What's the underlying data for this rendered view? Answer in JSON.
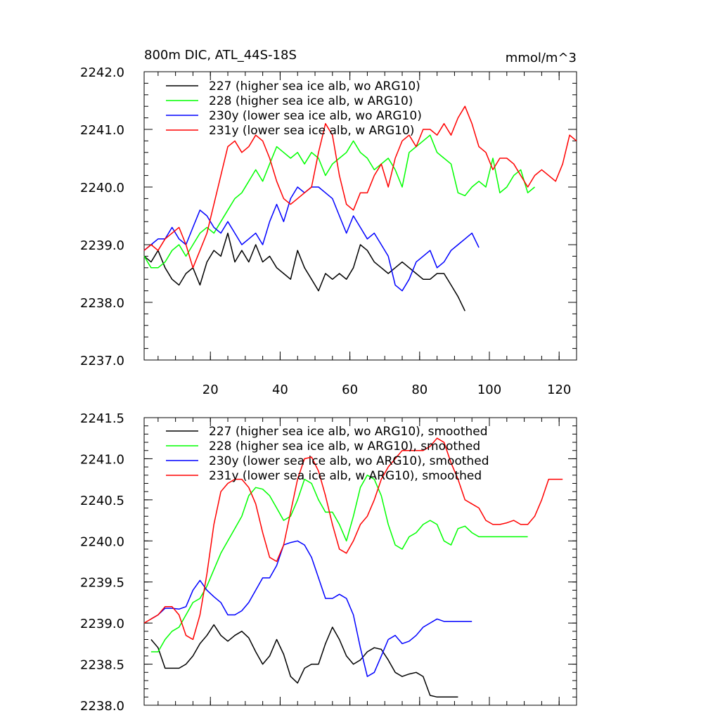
{
  "chart_data": [
    {
      "type": "line",
      "title": "800m DIC, ATL_44S-18S",
      "units": "mmol/m^3",
      "xlim": [
        1,
        125
      ],
      "ylim": [
        2237.0,
        2242.0
      ],
      "xticks": [
        20,
        40,
        60,
        80,
        100,
        120
      ],
      "xtick_labels": [
        "20",
        "40",
        "60",
        "80",
        "100",
        "120"
      ],
      "yticks": [
        2237.0,
        2238.0,
        2239.0,
        2240.0,
        2241.0,
        2242.0
      ],
      "ytick_labels": [
        "2237.0",
        "2238.0",
        "2239.0",
        "2240.0",
        "2241.0",
        "2242.0"
      ],
      "grid": false,
      "legend": "top-left",
      "series": [
        {
          "name": "227 (higher sea ice alb, wo ARG10)",
          "color": "#000000",
          "x": [
            1,
            3,
            5,
            7,
            9,
            11,
            13,
            15,
            17,
            19,
            21,
            23,
            25,
            27,
            29,
            31,
            33,
            35,
            37,
            39,
            41,
            43,
            45,
            47,
            49,
            51,
            53,
            55,
            57,
            59,
            61,
            63,
            65,
            67,
            69,
            71,
            73,
            75,
            77,
            79,
            81,
            83,
            85,
            87,
            89,
            91,
            93
          ],
          "y": [
            2238.8,
            2238.7,
            2238.9,
            2238.6,
            2238.4,
            2238.3,
            2238.5,
            2238.6,
            2238.3,
            2238.7,
            2238.9,
            2238.8,
            2239.2,
            2238.7,
            2238.9,
            2238.7,
            2239.0,
            2238.7,
            2238.8,
            2238.6,
            2238.5,
            2238.4,
            2238.9,
            2238.6,
            2238.4,
            2238.2,
            2238.5,
            2238.4,
            2238.5,
            2238.4,
            2238.6,
            2239.0,
            2238.9,
            2238.7,
            2238.6,
            2238.5,
            2238.6,
            2238.7,
            2238.6,
            2238.5,
            2238.4,
            2238.4,
            2238.5,
            2238.5,
            2238.3,
            2238.1,
            2237.85
          ]
        },
        {
          "name": "228 (higher sea ice alb, w ARG10)",
          "color": "#00ff00",
          "x": [
            1,
            3,
            5,
            7,
            9,
            11,
            13,
            15,
            17,
            19,
            21,
            23,
            25,
            27,
            29,
            31,
            33,
            35,
            37,
            39,
            41,
            43,
            45,
            47,
            49,
            51,
            53,
            55,
            57,
            59,
            61,
            63,
            65,
            67,
            69,
            71,
            73,
            75,
            77,
            79,
            81,
            83,
            85,
            87,
            89,
            91,
            93,
            95,
            97,
            99,
            101,
            103,
            105,
            107,
            109,
            111,
            113
          ],
          "y": [
            2238.8,
            2238.6,
            2238.6,
            2238.7,
            2238.9,
            2239.0,
            2238.8,
            2239.0,
            2239.2,
            2239.3,
            2239.2,
            2239.4,
            2239.6,
            2239.8,
            2239.9,
            2240.1,
            2240.3,
            2240.1,
            2240.4,
            2240.7,
            2240.6,
            2240.5,
            2240.6,
            2240.4,
            2240.6,
            2240.5,
            2240.2,
            2240.4,
            2240.5,
            2240.6,
            2240.8,
            2240.6,
            2240.5,
            2240.3,
            2240.4,
            2240.5,
            2240.3,
            2240.0,
            2240.6,
            2240.7,
            2240.8,
            2240.9,
            2240.6,
            2240.5,
            2240.4,
            2239.9,
            2239.85,
            2240.0,
            2240.1,
            2240.0,
            2240.5,
            2239.9,
            2240.0,
            2240.2,
            2240.3,
            2239.9,
            2240.0
          ]
        },
        {
          "name": "230y (lower sea ice alb, wo ARG10)",
          "color": "#0000ff",
          "x": [
            1,
            3,
            5,
            7,
            9,
            11,
            13,
            15,
            17,
            19,
            21,
            23,
            25,
            27,
            29,
            31,
            33,
            35,
            37,
            39,
            41,
            43,
            45,
            47,
            49,
            51,
            53,
            55,
            57,
            59,
            61,
            63,
            65,
            67,
            69,
            71,
            73,
            75,
            77,
            79,
            81,
            83,
            85,
            87,
            89,
            91,
            93,
            95,
            97
          ],
          "y": [
            2238.9,
            2239.0,
            2239.1,
            2239.1,
            2239.3,
            2239.1,
            2239.0,
            2239.3,
            2239.6,
            2239.5,
            2239.3,
            2239.2,
            2239.4,
            2239.2,
            2239.0,
            2239.1,
            2239.2,
            2239.0,
            2239.4,
            2239.7,
            2239.4,
            2239.8,
            2240.0,
            2239.9,
            2240.0,
            2240.0,
            2239.9,
            2239.8,
            2239.5,
            2239.2,
            2239.5,
            2239.3,
            2239.1,
            2239.2,
            2239.0,
            2238.8,
            2238.3,
            2238.2,
            2238.4,
            2238.7,
            2238.8,
            2238.9,
            2238.6,
            2238.7,
            2238.9,
            2239.0,
            2239.1,
            2239.2,
            2238.95
          ]
        },
        {
          "name": "231y (lower sea ice alb, w ARG10)",
          "color": "#ff0000",
          "x": [
            1,
            3,
            5,
            7,
            9,
            11,
            13,
            15,
            17,
            19,
            21,
            23,
            25,
            27,
            29,
            31,
            33,
            35,
            37,
            39,
            41,
            43,
            45,
            47,
            49,
            51,
            53,
            55,
            57,
            59,
            61,
            63,
            65,
            67,
            69,
            71,
            73,
            75,
            77,
            79,
            81,
            83,
            85,
            87,
            89,
            91,
            93,
            95,
            97,
            99,
            101,
            103,
            105,
            107,
            109,
            111,
            113,
            115,
            117,
            119,
            121,
            123,
            125
          ],
          "y": [
            2238.9,
            2239.0,
            2238.9,
            2239.1,
            2239.2,
            2239.3,
            2239.0,
            2238.6,
            2238.9,
            2239.2,
            2239.7,
            2240.2,
            2240.7,
            2240.8,
            2240.6,
            2240.7,
            2240.9,
            2240.8,
            2240.5,
            2240.1,
            2239.8,
            2239.7,
            2239.8,
            2239.9,
            2240.0,
            2240.6,
            2241.1,
            2240.9,
            2240.2,
            2239.7,
            2239.6,
            2239.9,
            2239.9,
            2240.2,
            2240.4,
            2240.0,
            2240.5,
            2240.8,
            2240.9,
            2240.7,
            2241.0,
            2241.0,
            2240.9,
            2241.1,
            2240.9,
            2241.2,
            2241.4,
            2241.1,
            2240.7,
            2240.6,
            2240.3,
            2240.5,
            2240.5,
            2240.4,
            2240.2,
            2240.0,
            2240.2,
            2240.3,
            2240.2,
            2240.1,
            2240.4,
            2240.9,
            2240.8
          ]
        }
      ]
    },
    {
      "type": "line",
      "title": "",
      "xlim": [
        1,
        125
      ],
      "ylim": [
        2238.0,
        2241.5
      ],
      "xticks": [
        20,
        40,
        60,
        80,
        100,
        120
      ],
      "yticks": [
        2238.0,
        2238.5,
        2239.0,
        2239.5,
        2240.0,
        2240.5,
        2241.0,
        2241.5
      ],
      "ytick_labels": [
        "2238.0",
        "2238.5",
        "2239.0",
        "2239.5",
        "2240.0",
        "2240.5",
        "2241.0",
        "2241.5"
      ],
      "grid": false,
      "legend": "top-left",
      "series": [
        {
          "name": "227 (higher sea ice alb, wo ARG10), smoothed",
          "color": "#000000",
          "x": [
            3,
            5,
            7,
            9,
            11,
            13,
            15,
            17,
            19,
            21,
            23,
            25,
            27,
            29,
            31,
            33,
            35,
            37,
            39,
            41,
            43,
            45,
            47,
            49,
            51,
            53,
            55,
            57,
            59,
            61,
            63,
            65,
            67,
            69,
            71,
            73,
            75,
            77,
            79,
            81,
            83,
            85,
            87,
            89,
            91
          ],
          "y": [
            2238.8,
            2238.7,
            2238.45,
            2238.45,
            2238.45,
            2238.5,
            2238.6,
            2238.75,
            2238.85,
            2238.98,
            2238.85,
            2238.78,
            2238.85,
            2238.9,
            2238.82,
            2238.65,
            2238.5,
            2238.6,
            2238.8,
            2238.62,
            2238.35,
            2238.27,
            2238.45,
            2238.5,
            2238.5,
            2238.75,
            2238.95,
            2238.8,
            2238.6,
            2238.5,
            2238.55,
            2238.65,
            2238.7,
            2238.68,
            2238.55,
            2238.4,
            2238.35,
            2238.38,
            2238.4,
            2238.35,
            2238.12,
            2238.1,
            2238.1,
            2238.1,
            2238.1
          ]
        },
        {
          "name": "228 (higher sea ice alb, w ARG10), smoothed",
          "color": "#00ff00",
          "x": [
            3,
            5,
            7,
            9,
            11,
            13,
            15,
            17,
            19,
            21,
            23,
            25,
            27,
            29,
            31,
            33,
            35,
            37,
            39,
            41,
            43,
            45,
            47,
            49,
            51,
            53,
            55,
            57,
            59,
            61,
            63,
            65,
            67,
            69,
            71,
            73,
            75,
            77,
            79,
            81,
            83,
            85,
            87,
            89,
            91,
            93,
            95,
            97,
            99,
            101,
            103,
            105,
            107,
            109,
            111
          ],
          "y": [
            2238.65,
            2238.65,
            2238.8,
            2238.9,
            2238.95,
            2239.1,
            2239.25,
            2239.3,
            2239.45,
            2239.65,
            2239.85,
            2240.0,
            2240.15,
            2240.3,
            2240.55,
            2240.65,
            2240.63,
            2240.55,
            2240.4,
            2240.25,
            2240.3,
            2240.5,
            2240.75,
            2240.7,
            2240.5,
            2240.35,
            2240.35,
            2240.2,
            2240.0,
            2240.3,
            2240.65,
            2240.8,
            2240.75,
            2240.55,
            2240.2,
            2239.95,
            2239.9,
            2240.05,
            2240.1,
            2240.2,
            2240.25,
            2240.2,
            2240.0,
            2239.95,
            2240.15,
            2240.18,
            2240.1,
            2240.05,
            2240.05,
            2240.05,
            2240.05,
            2240.05,
            2240.05,
            2240.05,
            2240.05
          ]
        },
        {
          "name": "230y (lower sea ice alb, wo ARG10), smoothed",
          "color": "#0000ff",
          "x": [
            3,
            5,
            7,
            9,
            11,
            13,
            15,
            17,
            19,
            21,
            23,
            25,
            27,
            29,
            31,
            33,
            35,
            37,
            39,
            41,
            43,
            45,
            47,
            49,
            51,
            53,
            55,
            57,
            59,
            61,
            63,
            65,
            67,
            69,
            71,
            73,
            75,
            77,
            79,
            81,
            83,
            85,
            87,
            89,
            91,
            93,
            95
          ],
          "y": [
            2239.05,
            2239.1,
            2239.18,
            2239.18,
            2239.17,
            2239.2,
            2239.4,
            2239.52,
            2239.4,
            2239.32,
            2239.25,
            2239.1,
            2239.1,
            2239.15,
            2239.25,
            2239.4,
            2239.55,
            2239.55,
            2239.7,
            2239.95,
            2239.98,
            2240.0,
            2239.95,
            2239.8,
            2239.55,
            2239.3,
            2239.3,
            2239.35,
            2239.3,
            2239.1,
            2238.7,
            2238.35,
            2238.4,
            2238.6,
            2238.8,
            2238.85,
            2238.75,
            2238.78,
            2238.85,
            2238.95,
            2239.0,
            2239.05,
            2239.02,
            2239.02,
            2239.02,
            2239.02,
            2239.02
          ]
        },
        {
          "name": "231y (lower sea ice alb, w ARG10), smoothed",
          "color": "#ff0000",
          "x": [
            1,
            3,
            5,
            7,
            9,
            11,
            13,
            15,
            17,
            19,
            21,
            23,
            25,
            27,
            29,
            31,
            33,
            35,
            37,
            39,
            41,
            43,
            45,
            47,
            49,
            51,
            53,
            55,
            57,
            59,
            61,
            63,
            65,
            67,
            69,
            71,
            73,
            75,
            77,
            79,
            81,
            83,
            85,
            87,
            89,
            91,
            93,
            95,
            97,
            99,
            101,
            103,
            105,
            107,
            109,
            111,
            113,
            115,
            117,
            119,
            121
          ],
          "y": [
            2239.0,
            2239.05,
            2239.1,
            2239.2,
            2239.2,
            2239.1,
            2238.85,
            2238.8,
            2239.1,
            2239.6,
            2240.2,
            2240.6,
            2240.7,
            2240.75,
            2240.75,
            2240.65,
            2240.45,
            2240.1,
            2239.8,
            2239.75,
            2239.95,
            2240.35,
            2240.75,
            2241.0,
            2241.02,
            2240.85,
            2240.55,
            2240.2,
            2239.9,
            2239.85,
            2240.0,
            2240.2,
            2240.3,
            2240.5,
            2240.75,
            2240.9,
            2241.0,
            2241.1,
            2241.1,
            2241.1,
            2241.1,
            2241.15,
            2241.25,
            2241.2,
            2240.95,
            2240.75,
            2240.5,
            2240.45,
            2240.4,
            2240.25,
            2240.2,
            2240.2,
            2240.22,
            2240.25,
            2240.2,
            2240.2,
            2240.3,
            2240.5,
            2240.75,
            2240.75,
            2240.75
          ]
        }
      ]
    }
  ]
}
